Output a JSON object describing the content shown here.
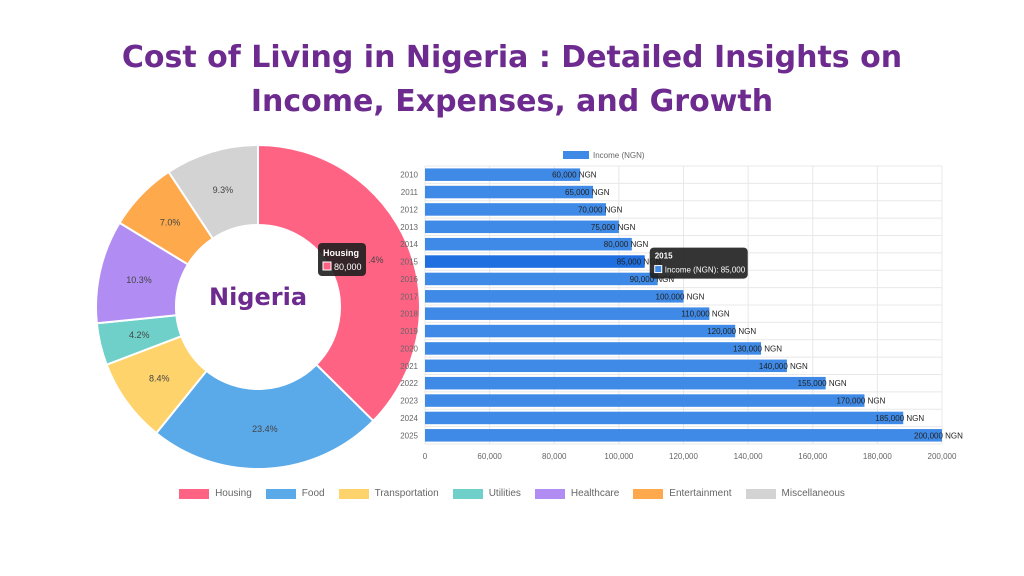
{
  "title": {
    "line1": "Cost of Living in  Nigeria  : Detailed Insights on",
    "line2": "Income, Expenses, and Growth"
  },
  "watermark": "",
  "chart_data": [
    {
      "type": "pie",
      "subtype": "doughnut",
      "center_label": "Nigeria",
      "categories": [
        "Housing",
        "Food",
        "Transportation",
        "Utilities",
        "Healthcare",
        "Entertainment",
        "Miscellaneous"
      ],
      "values": [
        37.4,
        23.4,
        8.4,
        4.2,
        10.3,
        7.0,
        9.3
      ],
      "labels": [
        "",
        "23.4%",
        "8.4%",
        "4.2%",
        "10.3%",
        "7.0%",
        "9.3%"
      ],
      "colors": [
        "#ff6384",
        "#5aa9e9",
        "#ffd36b",
        "#6fd0c9",
        "#b18cf2",
        "#ffa94d",
        "#d3d3d3"
      ],
      "legend_position": "bottom",
      "tooltip": {
        "title": "Housing",
        "value": "80,000",
        "color": "#ff6384"
      },
      "partial_label": ".4%"
    },
    {
      "type": "bar",
      "orientation": "horizontal",
      "legend": "Income (NGN)",
      "categories": [
        "2010",
        "2011",
        "2012",
        "2013",
        "2014",
        "2015",
        "2016",
        "2017",
        "2018",
        "2019",
        "2020",
        "2021",
        "2022",
        "2023",
        "2024",
        "2025"
      ],
      "values": [
        60000,
        65000,
        70000,
        75000,
        80000,
        85000,
        90000,
        100000,
        110000,
        120000,
        130000,
        140000,
        155000,
        170000,
        185000,
        200000
      ],
      "data_labels": [
        "60,000 NGN",
        "65,000 NGN",
        "70,000 NGN",
        "75,000 NGN",
        "80,000 NGN",
        "85,000 NGN",
        "90,000 NGN",
        "100,000 NGN",
        "110,000 NGN",
        "120,000 NGN",
        "130,000 NGN",
        "140,000 NGN",
        "155,000 NGN",
        "170,000 NGN",
        "185,000 NGN",
        "200,000 NGN"
      ],
      "xlim": [
        0,
        200000
      ],
      "x_ticks": [
        "0",
        "60,000",
        "80,000",
        "100,000",
        "120,000",
        "140,000",
        "160,000",
        "180,000",
        "200,000"
      ],
      "color": "#3f8ae6",
      "highlight_color": "#1f6fe0",
      "grid": true,
      "tooltip": {
        "title": "2015",
        "text": "Income (NGN): 85,000",
        "index": 5
      }
    }
  ]
}
